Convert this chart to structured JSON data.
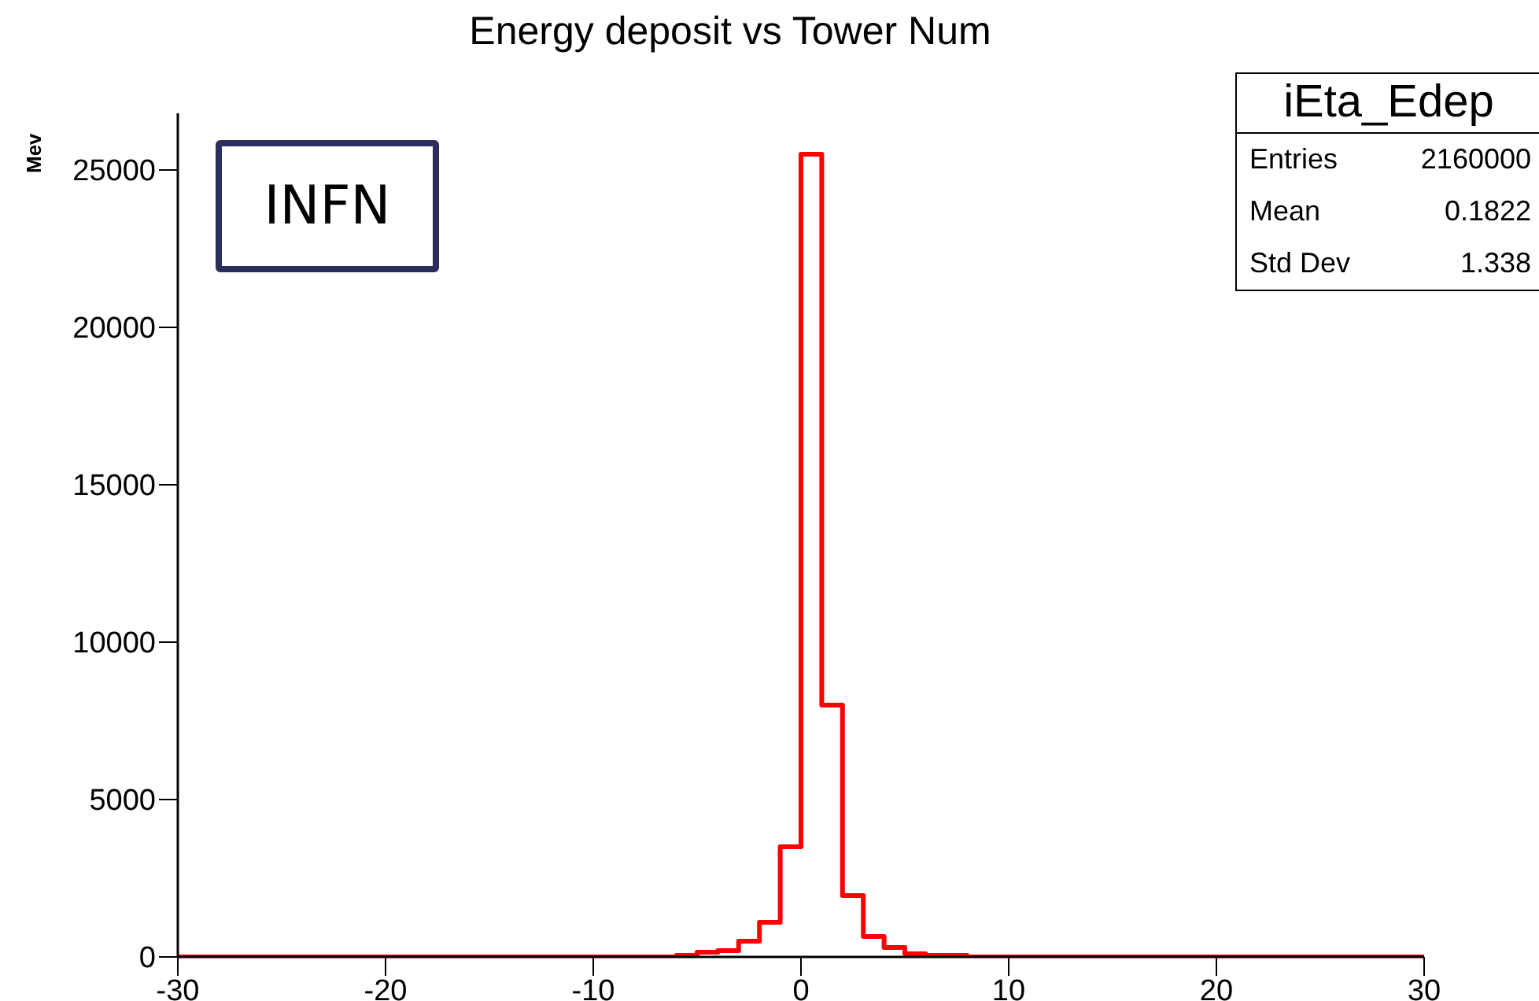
{
  "chart_data": {
    "type": "histogram",
    "title": "Energy deposit vs Tower Num",
    "ylabel": "Mev",
    "bins": [
      -30,
      -29,
      -28,
      -27,
      -26,
      -25,
      -24,
      -23,
      -22,
      -21,
      -20,
      -19,
      -18,
      -17,
      -16,
      -15,
      -14,
      -13,
      -12,
      -11,
      -10,
      -9,
      -8,
      -7,
      -6,
      -5,
      -4,
      -3,
      -2,
      -1,
      0,
      1,
      2,
      3,
      4,
      5,
      6,
      7,
      8,
      9,
      10,
      11,
      12,
      13,
      14,
      15,
      16,
      17,
      18,
      19,
      20,
      21,
      22,
      23,
      24,
      25,
      26,
      27,
      28,
      29,
      30
    ],
    "values": [
      0,
      0,
      0,
      0,
      0,
      0,
      0,
      0,
      0,
      0,
      0,
      0,
      0,
      0,
      0,
      0,
      0,
      0,
      0,
      0,
      0,
      0,
      0,
      0,
      50,
      150,
      200,
      500,
      1100,
      3500,
      25500,
      8000,
      1950,
      650,
      300,
      100,
      50,
      50,
      0,
      0,
      0,
      0,
      0,
      0,
      0,
      0,
      0,
      0,
      0,
      0,
      0,
      0,
      0,
      0,
      0,
      0,
      0,
      0,
      0,
      0
    ],
    "color": "#ff0000",
    "xlim": [
      -30,
      30
    ],
    "xticks": [
      -30,
      -20,
      -10,
      0,
      10,
      20,
      30
    ],
    "ylim": [
      0,
      26800
    ],
    "yticks": [
      0,
      5000,
      10000,
      15000,
      20000,
      25000
    ],
    "grid": false,
    "legend": false,
    "annotations": [
      "INFN",
      "iEta_Edep",
      "Entries",
      "2160000",
      "Mean",
      "0.1822",
      "Std Dev",
      "1.338"
    ]
  }
}
